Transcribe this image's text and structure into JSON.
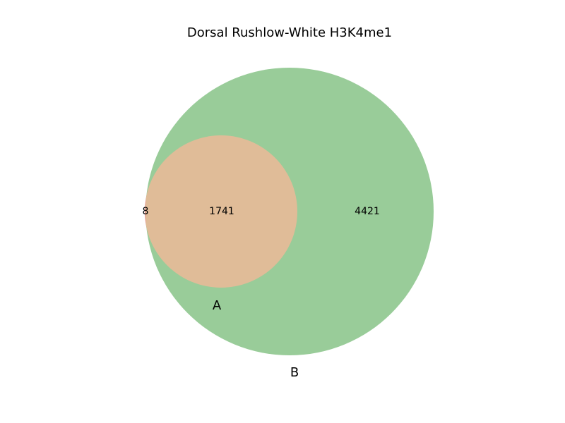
{
  "title": "Dorsal Rushlow-White H3K4me1",
  "sets": [
    {
      "label": "A",
      "color": "#f08080"
    },
    {
      "label": "B",
      "color": "#99cc99"
    }
  ],
  "intersection_color": "#e0bc98",
  "regions": {
    "a_only": "8",
    "a_and_b": "1741",
    "b_only": "4421"
  },
  "chart_data": {
    "type": "venn",
    "title": "Dorsal Rushlow-White H3K4me1",
    "sets": [
      "A",
      "B"
    ],
    "values": {
      "A_only": 8,
      "A_and_B": 1741,
      "B_only": 4421
    }
  }
}
